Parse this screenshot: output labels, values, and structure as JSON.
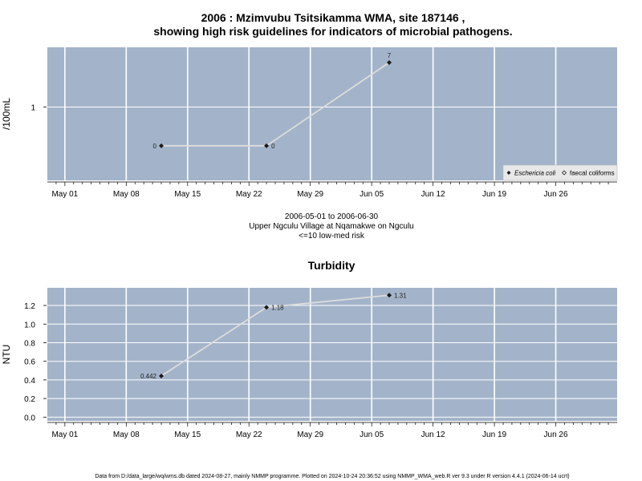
{
  "header": {
    "title_line1": "2006 : Mzimvubu Tsitsikamma WMA, site 187146 ,",
    "title_line2": "showing high risk guidelines for indicators of microbial pathogens."
  },
  "caption": {
    "date_range": "2006-05-01 to 2006-06-30",
    "site_name": "Upper Ngculu Village at Nqamakwe on Ngculu",
    "risk_level": "<=10 low-med risk"
  },
  "footer": {
    "text": "Data from D:/data_large/wq/wms.db dated 2024-08-27, mainly NMMP programme. Plotted on 2024-10-24 20:36:52 using NMMP_WMA_web.R ver 9.3 under R version 4.4.1 (2024-06-14 ucrt)"
  },
  "colors": {
    "panel_bg": "#a3b4ca",
    "grid": "#ffffff",
    "line": "#dcdcdc",
    "point": "#1a1a1a"
  },
  "chart_data": [
    {
      "type": "line",
      "title": "",
      "ylabel": "/100mL",
      "xlabel": "",
      "x_ticks": [
        "May 01",
        "May 08",
        "May 15",
        "May 22",
        "May 29",
        "Jun 05",
        "Jun 12",
        "Jun 19",
        "Jun 26"
      ],
      "y_ticks": [
        "1"
      ],
      "y_scale": "log",
      "ylim": [
        0.38,
        2.2
      ],
      "xlim": [
        "2006-04-29",
        "2006-07-03"
      ],
      "grid": true,
      "legend_position": "bottom-right",
      "legend": [
        "Eschericia coli",
        "faecal coliforms"
      ],
      "series": [
        {
          "name": "Eschericia coli",
          "points": [
            {
              "x": "2006-05-12",
              "y": 0.6,
              "label": "0"
            },
            {
              "x": "2006-05-24",
              "y": 0.6,
              "label": "0"
            },
            {
              "x": "2006-06-07",
              "y": 1.8,
              "label": "7"
            }
          ]
        }
      ]
    },
    {
      "type": "line",
      "title": "Turbidity",
      "ylabel": "NTU",
      "xlabel": "",
      "x_ticks": [
        "May 01",
        "May 08",
        "May 15",
        "May 22",
        "May 29",
        "Jun 05",
        "Jun 12",
        "Jun 19",
        "Jun 26"
      ],
      "y_ticks": [
        "0.0",
        "0.2",
        "0.4",
        "0.6",
        "0.8",
        "1.0",
        "1.2"
      ],
      "ylim": [
        -0.04,
        1.39
      ],
      "xlim": [
        "2006-04-29",
        "2006-07-03"
      ],
      "grid": true,
      "series": [
        {
          "name": "",
          "points": [
            {
              "x": "2006-05-12",
              "y": 0.442,
              "label": "0.442"
            },
            {
              "x": "2006-05-24",
              "y": 1.18,
              "label": "1.18"
            },
            {
              "x": "2006-06-07",
              "y": 1.31,
              "label": "1.31"
            }
          ]
        }
      ]
    }
  ]
}
